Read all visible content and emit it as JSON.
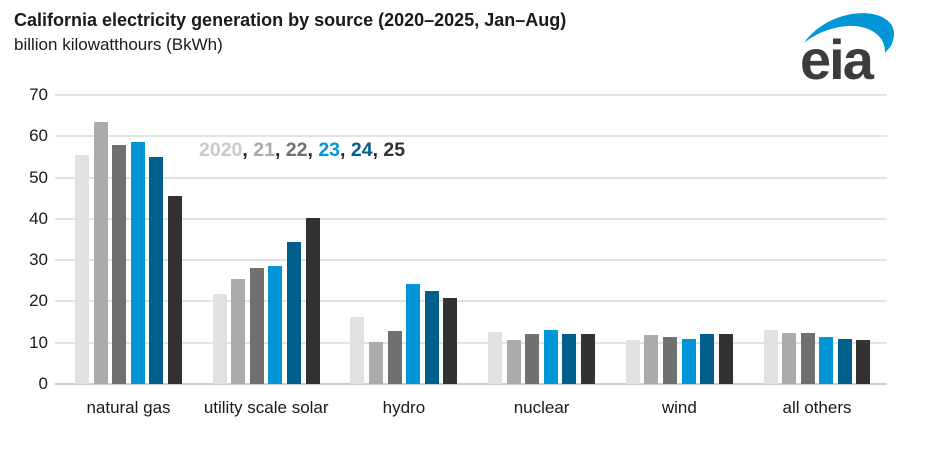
{
  "header": {
    "title": "California electricity generation by source (2020–2025, Jan–Aug)",
    "subtitle": "billion kilowatthours (BkWh)",
    "logo_text": "eia"
  },
  "colors": {
    "title_text": "#1a1a1a",
    "axis_text": "#1a1a1a",
    "gridline": "#e3e3e3",
    "axis_line": "#cdcdcd",
    "legend_separator_text": "#262626",
    "logo_swoosh": "#0096d7",
    "logo_text": "#3a3c3e"
  },
  "legend": {
    "separator": ", ",
    "position": "inside-plot-upper-left"
  },
  "chart_data": {
    "type": "bar",
    "title": "California electricity generation by source (2020–2025, Jan–Aug)",
    "subtitle": "billion kilowatthours (BkWh)",
    "xlabel": "",
    "ylabel": "billion kilowatthours (BkWh)",
    "ylim": [
      0,
      70
    ],
    "yticks": [
      0,
      10,
      20,
      30,
      40,
      50,
      60,
      70
    ],
    "grid": "horizontal",
    "legend_position": "inside-top-left",
    "categories": [
      "natural gas",
      "utility scale solar",
      "hydro",
      "nuclear",
      "wind",
      "all others"
    ],
    "series": [
      {
        "name": "2020",
        "color": "#e1e1e1",
        "legend_color": "#c9c9c9",
        "values": [
          55.5,
          21.9,
          16.3,
          12.7,
          10.7,
          13.1
        ]
      },
      {
        "name": "21",
        "color": "#ababab",
        "values": [
          63.5,
          25.5,
          10.3,
          10.6,
          12.0,
          12.4
        ]
      },
      {
        "name": "22",
        "color": "#707070",
        "values": [
          57.8,
          28.0,
          12.9,
          12.2,
          11.5,
          12.4
        ]
      },
      {
        "name": "23",
        "color": "#0096d7",
        "values": [
          58.6,
          28.6,
          24.3,
          13.1,
          10.9,
          11.3
        ]
      },
      {
        "name": "24",
        "color": "#005f8b",
        "values": [
          55.0,
          34.4,
          22.5,
          12.2,
          12.2,
          10.8
        ]
      },
      {
        "name": "25",
        "color": "#323232",
        "values": [
          45.5,
          40.2,
          20.9,
          12.2,
          12.2,
          10.6
        ]
      }
    ]
  }
}
